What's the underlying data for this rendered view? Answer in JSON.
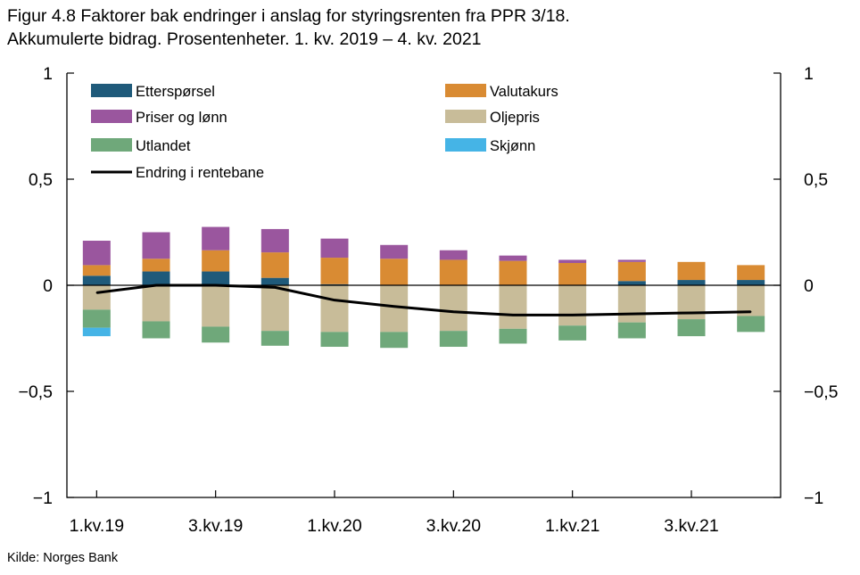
{
  "title": "Figur 4.8 Faktorer bak endringer i anslag for styringsrenten fra PPR 3/18.",
  "subtitle": "Akkumulerte bidrag. Prosentenheter. 1. kv. 2019 – 4. kv. 2021",
  "source": "Kilde: Norges Bank",
  "colors": {
    "etterspørsel": "#1f5a7a",
    "valutakurs": "#d98b33",
    "priser_og_lønn": "#9a569e",
    "oljepris": "#c8bc99",
    "utlandet": "#6fa87a",
    "skjønn": "#45b4e6",
    "line": "#000000"
  },
  "chart_data": {
    "type": "bar",
    "stacked": true,
    "title": "Figur 4.8 Faktorer bak endringer i anslag for styringsrenten fra PPR 3/18.",
    "subtitle": "Akkumulerte bidrag. Prosentenheter. 1. kv. 2019 – 4. kv. 2021",
    "xlabel": "",
    "ylabel": "",
    "ylim": [
      -1,
      1
    ],
    "yticks": [
      1,
      0.5,
      0,
      -0.5,
      -1
    ],
    "ytick_labels": [
      "1",
      "0,5",
      "0",
      "−0,5",
      "−1"
    ],
    "xtick_labels": [
      "1.kv.19",
      "3.kv.19",
      "1.kv.20",
      "3.kv.20",
      "1.kv.21",
      "3.kv.21"
    ],
    "categories": [
      "1.kv.19",
      "2.kv.19",
      "3.kv.19",
      "4.kv.19",
      "1.kv.20",
      "2.kv.20",
      "3.kv.20",
      "4.kv.20",
      "1.kv.21",
      "2.kv.21",
      "3.kv.21",
      "4.kv.21"
    ],
    "series": [
      {
        "name": "Etterspørsel",
        "key": "etterspørsel",
        "kind": "bar",
        "values": [
          0.045,
          0.065,
          0.065,
          0.035,
          0.005,
          0,
          0,
          0,
          0,
          0.02,
          0.025,
          0.025
        ]
      },
      {
        "name": "Valutakurs",
        "key": "valutakurs",
        "kind": "bar",
        "values": [
          0.05,
          0.06,
          0.1,
          0.12,
          0.125,
          0.125,
          0.12,
          0.115,
          0.105,
          0.09,
          0.085,
          0.07
        ]
      },
      {
        "name": "Priser og lønn",
        "key": "priser_og_lønn",
        "kind": "bar",
        "values": [
          0.115,
          0.125,
          0.11,
          0.11,
          0.09,
          0.065,
          0.045,
          0.025,
          0.015,
          0.01,
          0,
          0
        ]
      },
      {
        "name": "Oljepris",
        "key": "oljepris",
        "kind": "bar",
        "values": [
          -0.115,
          -0.17,
          -0.195,
          -0.215,
          -0.22,
          -0.22,
          -0.215,
          -0.205,
          -0.19,
          -0.175,
          -0.16,
          -0.145
        ]
      },
      {
        "name": "Utlandet",
        "key": "utlandet",
        "kind": "bar",
        "values": [
          -0.085,
          -0.08,
          -0.075,
          -0.07,
          -0.07,
          -0.075,
          -0.075,
          -0.07,
          -0.07,
          -0.075,
          -0.08,
          -0.075
        ]
      },
      {
        "name": "Skjønn",
        "key": "skjønn",
        "kind": "bar",
        "values": [
          -0.04,
          0,
          0,
          0,
          0,
          0,
          0,
          0,
          0,
          0,
          0,
          0
        ]
      },
      {
        "name": "Endring i rentebane",
        "key": "line",
        "kind": "line",
        "values": [
          -0.035,
          0,
          0,
          -0.01,
          -0.07,
          -0.1,
          -0.125,
          -0.14,
          -0.14,
          -0.135,
          -0.13,
          -0.125
        ]
      }
    ],
    "legend": {
      "placement": "top-left, two columns",
      "entries": [
        "Etterspørsel",
        "Valutakurs",
        "Priser og lønn",
        "Oljepris",
        "Utlandet",
        "Skjønn",
        "Endring i rentebane"
      ]
    },
    "grid": false
  }
}
